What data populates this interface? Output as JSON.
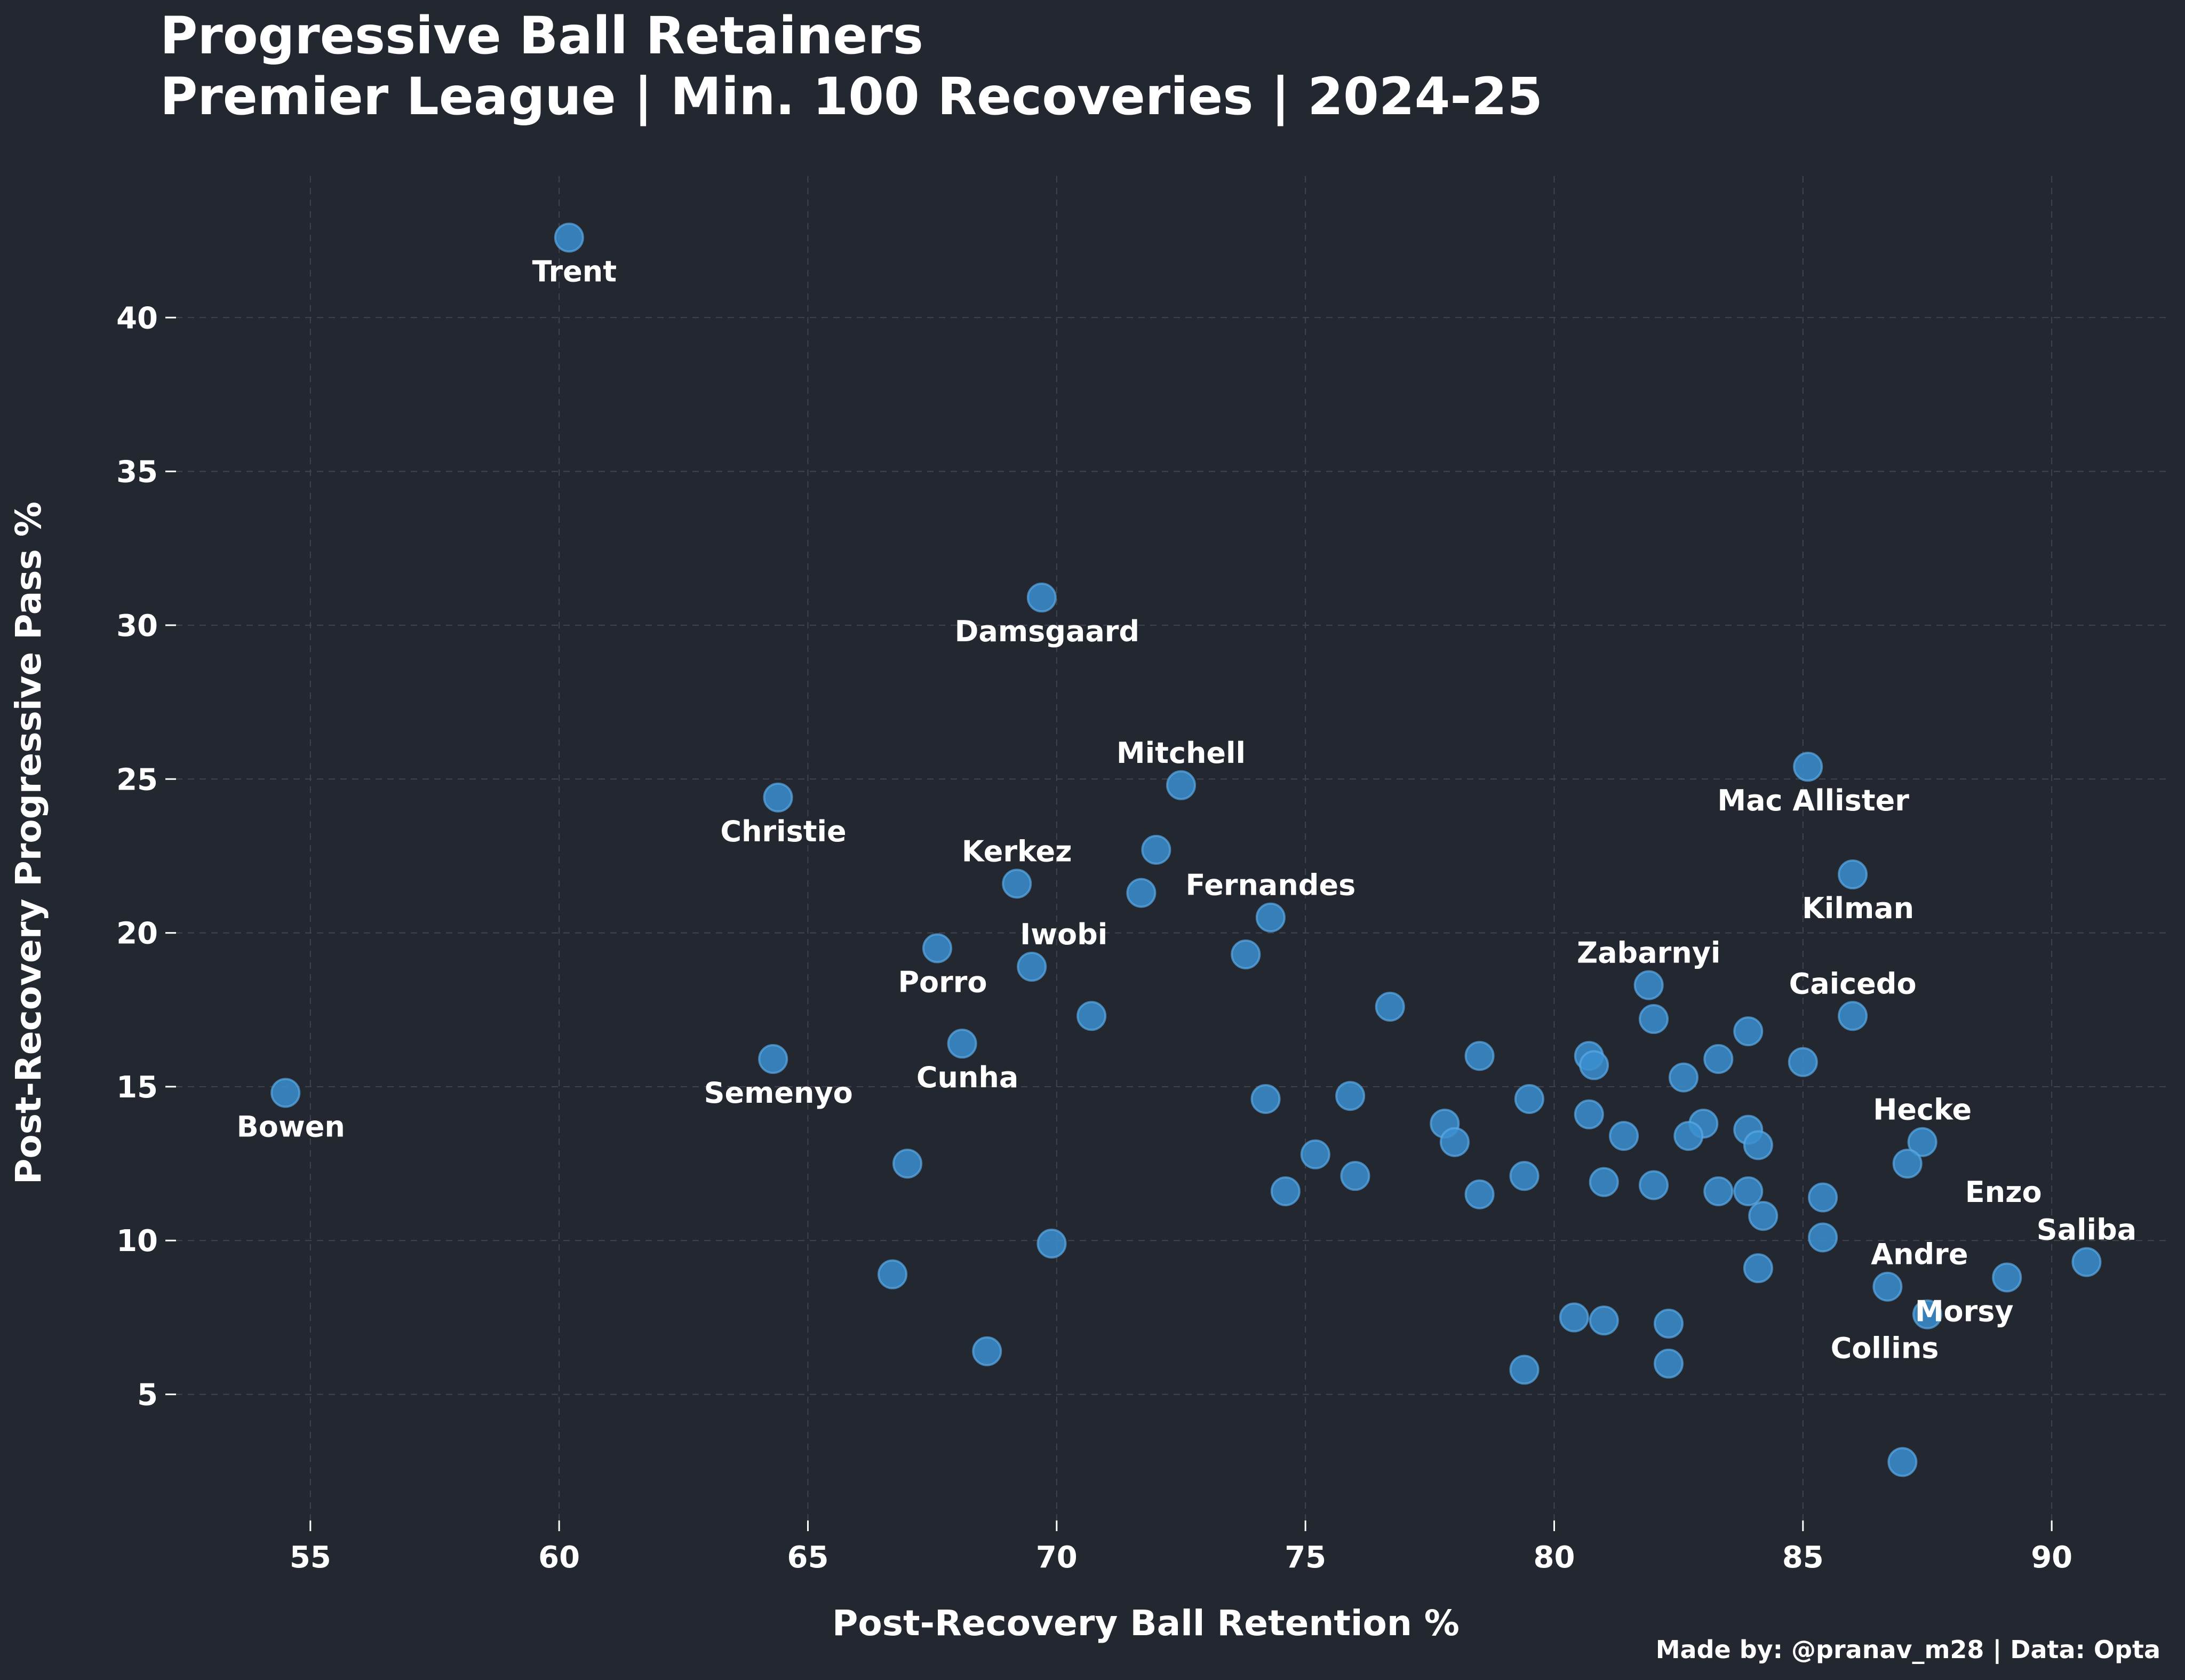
{
  "chart_data": {
    "type": "scatter",
    "title_lines": [
      "Progressive Ball Retainers",
      "Premier League | Min. 100 Recoveries | 2024-25"
    ],
    "xlabel": "Post-Recovery Ball Retention %",
    "ylabel": "Post-Recovery Progressive Pass %",
    "credit": "Made by: @pranav_m28 | Data: Opta",
    "xlim": [
      52.3,
      92.4
    ],
    "ylim": [
      0.9,
      44.6
    ],
    "xticks": [
      55,
      60,
      65,
      70,
      75,
      80,
      85,
      90
    ],
    "yticks": [
      5,
      10,
      15,
      20,
      25,
      30,
      35,
      40
    ],
    "grid": true,
    "colors": {
      "background": "#232730",
      "point": "#3a8fd0",
      "text": "#ffffff",
      "grid": "#3f4450"
    },
    "points": [
      {
        "x": 60.2,
        "y": 42.6,
        "label": "Trent",
        "pos": "below"
      },
      {
        "x": 69.7,
        "y": 30.9,
        "label": "Damsgaard",
        "pos": "below"
      },
      {
        "x": 72.5,
        "y": 24.8,
        "label": "Mitchell",
        "pos": "above"
      },
      {
        "x": 85.1,
        "y": 25.4,
        "label": "Mac Allister",
        "pos": "below"
      },
      {
        "x": 64.4,
        "y": 24.4,
        "label": "Christie",
        "pos": "below"
      },
      {
        "x": 69.2,
        "y": 21.6,
        "label": "Kerkez",
        "pos": "above"
      },
      {
        "x": 74.3,
        "y": 20.5,
        "label": "Fernandes",
        "pos": "above"
      },
      {
        "x": 86.0,
        "y": 21.9,
        "label": "Kilman",
        "pos": "below"
      },
      {
        "x": 67.6,
        "y": 19.5,
        "label": "Porro",
        "pos": "below"
      },
      {
        "x": 69.5,
        "y": 18.9,
        "label": "Iwobi",
        "pos": "aboveright"
      },
      {
        "x": 81.9,
        "y": 18.3,
        "label": "Zabarnyi",
        "pos": "above"
      },
      {
        "x": 86.0,
        "y": 17.3,
        "label": "Caicedo",
        "pos": "above"
      },
      {
        "x": 64.3,
        "y": 15.9,
        "label": "Semenyo",
        "pos": "below"
      },
      {
        "x": 68.1,
        "y": 16.4,
        "label": "Cunha",
        "pos": "below"
      },
      {
        "x": 54.5,
        "y": 14.8,
        "label": "Bowen",
        "pos": "below"
      },
      {
        "x": 87.4,
        "y": 13.2,
        "label": "Hecke",
        "pos": "above"
      },
      {
        "x": 87.1,
        "y": 12.5,
        "label": "Enzo",
        "pos": "belowright"
      },
      {
        "x": 90.7,
        "y": 9.3,
        "label": "Saliba",
        "pos": "above"
      },
      {
        "x": 86.7,
        "y": 8.5,
        "label": "Andre",
        "pos": "aboveright"
      },
      {
        "x": 89.1,
        "y": 8.8,
        "label": "Morsy",
        "pos": "belowleft"
      },
      {
        "x": 87.5,
        "y": 7.6,
        "label": "Collins",
        "pos": "belowleft"
      },
      {
        "x": 72.0,
        "y": 22.7,
        "label": ""
      },
      {
        "x": 71.7,
        "y": 21.3,
        "label": ""
      },
      {
        "x": 73.8,
        "y": 19.3,
        "label": ""
      },
      {
        "x": 70.7,
        "y": 17.3,
        "label": ""
      },
      {
        "x": 76.7,
        "y": 17.6,
        "label": ""
      },
      {
        "x": 78.5,
        "y": 16.0,
        "label": ""
      },
      {
        "x": 80.7,
        "y": 16.0,
        "label": ""
      },
      {
        "x": 80.8,
        "y": 15.7,
        "label": ""
      },
      {
        "x": 82.0,
        "y": 17.2,
        "label": ""
      },
      {
        "x": 83.9,
        "y": 16.8,
        "label": ""
      },
      {
        "x": 83.3,
        "y": 15.9,
        "label": ""
      },
      {
        "x": 85.0,
        "y": 15.8,
        "label": ""
      },
      {
        "x": 82.6,
        "y": 15.3,
        "label": ""
      },
      {
        "x": 74.2,
        "y": 14.6,
        "label": ""
      },
      {
        "x": 75.9,
        "y": 14.7,
        "label": ""
      },
      {
        "x": 79.5,
        "y": 14.6,
        "label": ""
      },
      {
        "x": 80.7,
        "y": 14.1,
        "label": ""
      },
      {
        "x": 77.8,
        "y": 13.8,
        "label": ""
      },
      {
        "x": 78.0,
        "y": 13.2,
        "label": ""
      },
      {
        "x": 81.4,
        "y": 13.4,
        "label": ""
      },
      {
        "x": 83.0,
        "y": 13.8,
        "label": ""
      },
      {
        "x": 82.7,
        "y": 13.4,
        "label": ""
      },
      {
        "x": 83.9,
        "y": 13.6,
        "label": ""
      },
      {
        "x": 84.1,
        "y": 13.1,
        "label": ""
      },
      {
        "x": 75.2,
        "y": 12.8,
        "label": ""
      },
      {
        "x": 76.0,
        "y": 12.1,
        "label": ""
      },
      {
        "x": 79.4,
        "y": 12.1,
        "label": ""
      },
      {
        "x": 81.0,
        "y": 11.9,
        "label": ""
      },
      {
        "x": 82.0,
        "y": 11.8,
        "label": ""
      },
      {
        "x": 83.3,
        "y": 11.6,
        "label": ""
      },
      {
        "x": 83.9,
        "y": 11.6,
        "label": ""
      },
      {
        "x": 74.6,
        "y": 11.6,
        "label": ""
      },
      {
        "x": 78.5,
        "y": 11.5,
        "label": ""
      },
      {
        "x": 85.4,
        "y": 11.4,
        "label": ""
      },
      {
        "x": 84.2,
        "y": 10.8,
        "label": ""
      },
      {
        "x": 85.4,
        "y": 10.1,
        "label": ""
      },
      {
        "x": 67.0,
        "y": 12.5,
        "label": ""
      },
      {
        "x": 69.9,
        "y": 9.9,
        "label": ""
      },
      {
        "x": 66.7,
        "y": 8.9,
        "label": ""
      },
      {
        "x": 84.1,
        "y": 9.1,
        "label": ""
      },
      {
        "x": 80.4,
        "y": 7.5,
        "label": ""
      },
      {
        "x": 81.0,
        "y": 7.4,
        "label": ""
      },
      {
        "x": 82.3,
        "y": 7.3,
        "label": ""
      },
      {
        "x": 82.3,
        "y": 6.0,
        "label": ""
      },
      {
        "x": 79.4,
        "y": 5.8,
        "label": ""
      },
      {
        "x": 68.6,
        "y": 6.4,
        "label": ""
      },
      {
        "x": 87.0,
        "y": 2.8,
        "label": ""
      }
    ]
  }
}
